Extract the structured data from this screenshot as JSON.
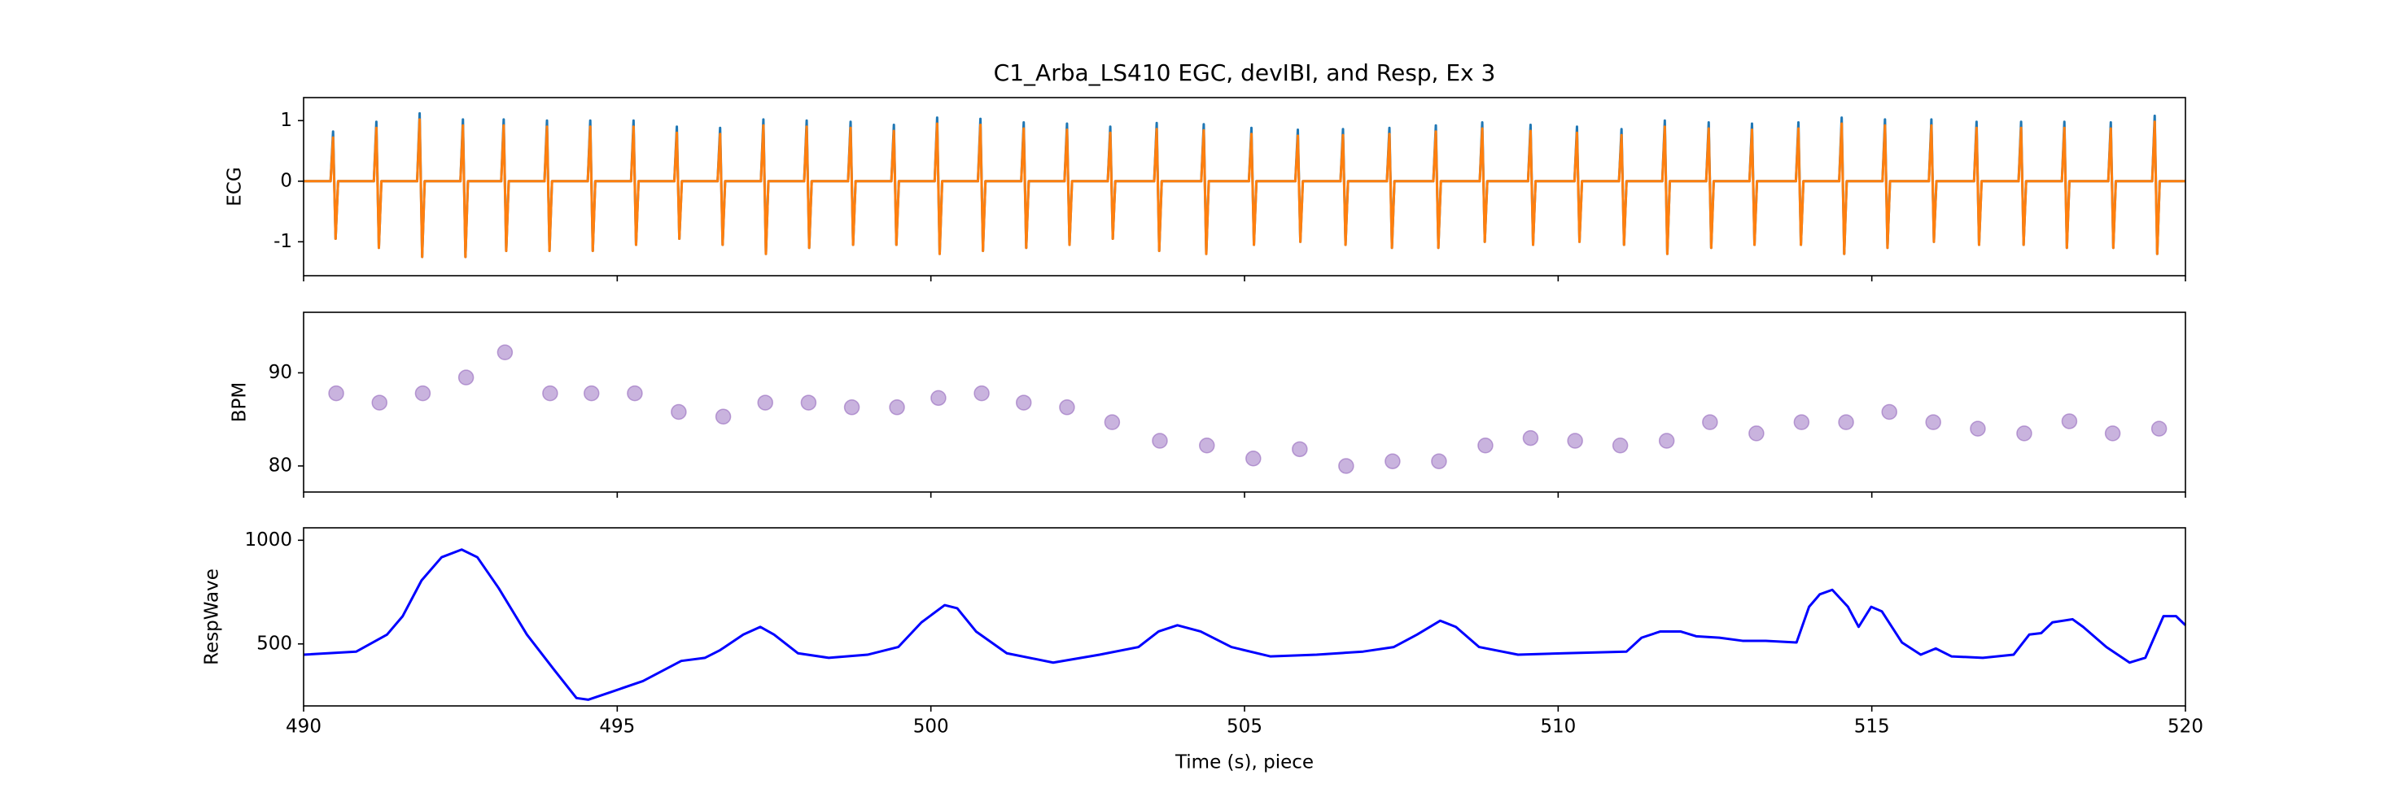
{
  "chart_data": [
    {
      "type": "line",
      "title": "C1_Arba_LS410 EGC, devIBI, and Resp, Ex 3",
      "ylabel": "ECG",
      "xlim": [
        490,
        520
      ],
      "xticks": [
        490,
        495,
        500,
        505,
        510,
        515,
        520
      ],
      "ylim": [
        -1.56,
        1.38
      ],
      "yticks": [
        -1,
        0,
        1
      ],
      "x": [
        490,
        490.43,
        490.47,
        490.51,
        490.55,
        491.12,
        491.16,
        491.2,
        491.24,
        491.81,
        491.85,
        491.89,
        491.93,
        492.5,
        492.54,
        492.58,
        492.62,
        493.15,
        493.19,
        493.23,
        493.27,
        493.84,
        493.88,
        493.92,
        493.96,
        494.53,
        494.57,
        494.61,
        494.65,
        495.22,
        495.26,
        495.3,
        495.34,
        495.91,
        495.95,
        495.99,
        496.03,
        496.6,
        496.64,
        496.68,
        496.72,
        497.29,
        497.33,
        497.37,
        497.41,
        497.98,
        498.02,
        498.06,
        498.1,
        498.68,
        498.72,
        498.76,
        498.8,
        499.37,
        499.41,
        499.45,
        499.49,
        500.06,
        500.1,
        500.14,
        500.18,
        500.75,
        500.79,
        500.83,
        500.87,
        501.44,
        501.48,
        501.52,
        501.56,
        502.13,
        502.17,
        502.21,
        502.25,
        502.82,
        502.86,
        502.9,
        502.94,
        503.56,
        503.6,
        503.64,
        503.68,
        504.31,
        504.35,
        504.39,
        504.43,
        505.07,
        505.11,
        505.15,
        505.19,
        505.81,
        505.85,
        505.89,
        505.93,
        506.53,
        506.57,
        506.61,
        506.65,
        507.27,
        507.31,
        507.35,
        507.39,
        508.01,
        508.05,
        508.09,
        508.13,
        508.75,
        508.79,
        508.83,
        508.87,
        509.52,
        509.56,
        509.6,
        509.64,
        510.26,
        510.3,
        510.34,
        510.38,
        510.97,
        511.01,
        511.05,
        511.09,
        511.66,
        511.7,
        511.74,
        511.78,
        512.36,
        512.4,
        512.44,
        512.48,
        513.05,
        513.09,
        513.13,
        513.17,
        513.79,
        513.83,
        513.87,
        513.91,
        514.48,
        514.52,
        514.56,
        514.6,
        515.17,
        515.21,
        515.25,
        515.29,
        515.91,
        515.95,
        515.99,
        516.03,
        516.63,
        516.67,
        516.71,
        516.75,
        517.34,
        517.38,
        517.42,
        517.46,
        518.03,
        518.07,
        518.11,
        518.15,
        518.77,
        518.81,
        518.85,
        518.89,
        519.47,
        519.51,
        519.55,
        519.59,
        520
      ],
      "series": [
        {
          "color": "#1f77b4",
          "values": [
            0,
            0,
            0.82,
            -0.95,
            0,
            0,
            0.98,
            -1.1,
            0,
            0,
            1.12,
            -1.25,
            0,
            0,
            1.02,
            -1.25,
            0,
            0,
            1.02,
            -1.15,
            0,
            0,
            1.0,
            -1.15,
            0,
            0,
            1.0,
            -1.15,
            0,
            0,
            1.0,
            -1.05,
            0,
            0,
            0.9,
            -0.95,
            0,
            0,
            0.88,
            -1.05,
            0,
            0,
            1.02,
            -1.2,
            0,
            0,
            1.0,
            -1.1,
            0,
            0,
            0.98,
            -1.05,
            0,
            0,
            0.93,
            -1.05,
            0,
            0,
            1.05,
            -1.2,
            0,
            0,
            1.03,
            -1.15,
            0,
            0,
            0.97,
            -1.1,
            0,
            0,
            0.95,
            -1.05,
            0,
            0,
            0.9,
            -0.95,
            0,
            0,
            0.96,
            -1.15,
            0,
            0,
            0.94,
            -1.2,
            0,
            0,
            0.88,
            -1.05,
            0,
            0,
            0.85,
            -1.0,
            0,
            0,
            0.86,
            -1.05,
            0,
            0,
            0.88,
            -1.1,
            0,
            0,
            0.92,
            -1.1,
            0,
            0,
            0.97,
            -1.0,
            0,
            0,
            0.93,
            -1.05,
            0,
            0,
            0.9,
            -1.0,
            0,
            0,
            0.86,
            -1.05,
            0,
            0,
            1.0,
            -1.2,
            0,
            0,
            0.97,
            -1.1,
            0,
            0,
            0.95,
            -1.05,
            0,
            0,
            0.97,
            -1.05,
            0,
            0,
            1.05,
            -1.2,
            0,
            0,
            1.02,
            -1.1,
            0,
            0,
            1.02,
            -1.0,
            0,
            0,
            0.98,
            -1.05,
            0,
            0,
            0.98,
            -1.05,
            0,
            0,
            0.98,
            -1.1,
            0,
            0,
            0.97,
            -1.1,
            0,
            0,
            1.08,
            -1.2,
            0,
            0
          ]
        },
        {
          "color": "#ff7f0e",
          "values": [
            0,
            0,
            0.72,
            -0.95,
            0,
            0,
            0.88,
            -1.1,
            0,
            0,
            1.02,
            -1.25,
            0,
            0,
            0.92,
            -1.25,
            0,
            0,
            0.92,
            -1.15,
            0,
            0,
            0.9,
            -1.15,
            0,
            0,
            0.9,
            -1.15,
            0,
            0,
            0.9,
            -1.05,
            0,
            0,
            0.8,
            -0.95,
            0,
            0,
            0.78,
            -1.05,
            0,
            0,
            0.92,
            -1.2,
            0,
            0,
            0.9,
            -1.1,
            0,
            0,
            0.88,
            -1.05,
            0,
            0,
            0.83,
            -1.05,
            0,
            0,
            0.95,
            -1.2,
            0,
            0,
            0.93,
            -1.15,
            0,
            0,
            0.87,
            -1.1,
            0,
            0,
            0.85,
            -1.05,
            0,
            0,
            0.8,
            -0.95,
            0,
            0,
            0.86,
            -1.15,
            0,
            0,
            0.84,
            -1.2,
            0,
            0,
            0.78,
            -1.05,
            0,
            0,
            0.75,
            -1.0,
            0,
            0,
            0.76,
            -1.05,
            0,
            0,
            0.78,
            -1.1,
            0,
            0,
            0.82,
            -1.1,
            0,
            0,
            0.87,
            -1.0,
            0,
            0,
            0.83,
            -1.05,
            0,
            0,
            0.8,
            -1.0,
            0,
            0,
            0.76,
            -1.05,
            0,
            0,
            0.9,
            -1.2,
            0,
            0,
            0.87,
            -1.1,
            0,
            0,
            0.85,
            -1.05,
            0,
            0,
            0.87,
            -1.05,
            0,
            0,
            0.95,
            -1.2,
            0,
            0,
            0.92,
            -1.1,
            0,
            0,
            0.92,
            -1.0,
            0,
            0,
            0.88,
            -1.05,
            0,
            0,
            0.88,
            -1.05,
            0,
            0,
            0.88,
            -1.1,
            0,
            0,
            0.87,
            -1.1,
            0,
            0,
            0.98,
            -1.2,
            0,
            0
          ]
        }
      ]
    },
    {
      "type": "scatter",
      "ylabel": "BPM",
      "color": "#9467bd",
      "xlim": [
        490,
        520
      ],
      "xticks": [
        490,
        495,
        500,
        505,
        510,
        515,
        520
      ],
      "ylim": [
        77.2,
        96.5
      ],
      "yticks": [
        80,
        90
      ],
      "x": [
        490.52,
        491.21,
        491.9,
        492.59,
        493.21,
        493.93,
        494.59,
        495.28,
        495.98,
        496.69,
        497.36,
        498.05,
        498.74,
        499.46,
        500.12,
        500.81,
        501.48,
        502.17,
        502.89,
        503.65,
        504.4,
        505.14,
        505.88,
        506.62,
        507.36,
        508.1,
        508.84,
        509.56,
        510.27,
        510.99,
        511.73,
        512.42,
        513.16,
        513.88,
        514.59,
        515.28,
        515.98,
        516.69,
        517.43,
        518.15,
        518.84,
        519.58
      ],
      "values": [
        87.8,
        86.8,
        87.8,
        89.5,
        92.2,
        87.8,
        87.8,
        87.8,
        85.8,
        85.3,
        86.8,
        86.8,
        86.3,
        86.3,
        87.3,
        87.8,
        86.8,
        86.3,
        84.7,
        82.7,
        82.2,
        80.8,
        81.8,
        80.0,
        80.5,
        80.5,
        82.2,
        83.0,
        82.7,
        82.2,
        82.7,
        84.7,
        83.5,
        84.7,
        84.7,
        85.8,
        84.7,
        84.0,
        83.5,
        84.8,
        83.5,
        84.0
      ]
    },
    {
      "type": "line",
      "ylabel": "RespWave",
      "xlabel": "Time (s), piece",
      "xlim": [
        490,
        520
      ],
      "xticks": [
        490,
        495,
        500,
        505,
        510,
        515,
        520
      ],
      "ylim": [
        201,
        1060
      ],
      "yticks": [
        500,
        1000
      ],
      "x": [
        490,
        490.84,
        491.33,
        491.58,
        491.88,
        492.2,
        492.52,
        492.77,
        493.11,
        493.56,
        494.0,
        494.35,
        494.54,
        494.91,
        495.41,
        496.02,
        496.4,
        496.64,
        497.01,
        497.28,
        497.5,
        497.88,
        498.37,
        498.99,
        499.48,
        499.85,
        500.22,
        500.42,
        500.72,
        501.21,
        501.95,
        502.69,
        503.31,
        503.63,
        503.93,
        504.3,
        504.79,
        505.41,
        506.15,
        506.89,
        507.38,
        507.75,
        508.12,
        508.37,
        508.74,
        509.36,
        510.1,
        511.09,
        511.33,
        511.63,
        511.95,
        512.2,
        512.57,
        512.94,
        513.31,
        513.8,
        514.0,
        514.17,
        514.37,
        514.62,
        514.79,
        514.99,
        515.16,
        515.48,
        515.78,
        516.02,
        516.27,
        516.77,
        517.26,
        517.51,
        517.7,
        517.88,
        518.2,
        518.37,
        518.74,
        519.11,
        519.36,
        519.65,
        519.85,
        520
      ],
      "series": [
        {
          "color": "#0000ff",
          "values": [
            448,
            463,
            545,
            634,
            806,
            918,
            955,
            918,
            769,
            545,
            373,
            239,
            231,
            269,
            321,
            418,
            433,
            470,
            545,
            582,
            545,
            455,
            433,
            448,
            485,
            604,
            687,
            672,
            560,
            455,
            410,
            448,
            485,
            560,
            590,
            560,
            485,
            440,
            448,
            463,
            485,
            545,
            612,
            582,
            485,
            448,
            455,
            463,
            530,
            560,
            560,
            537,
            530,
            515,
            515,
            507,
            679,
            739,
            761,
            679,
            582,
            679,
            657,
            507,
            448,
            478,
            440,
            433,
            448,
            545,
            552,
            604,
            619,
            582,
            485,
            410,
            433,
            634,
            634,
            590
          ]
        }
      ]
    }
  ]
}
